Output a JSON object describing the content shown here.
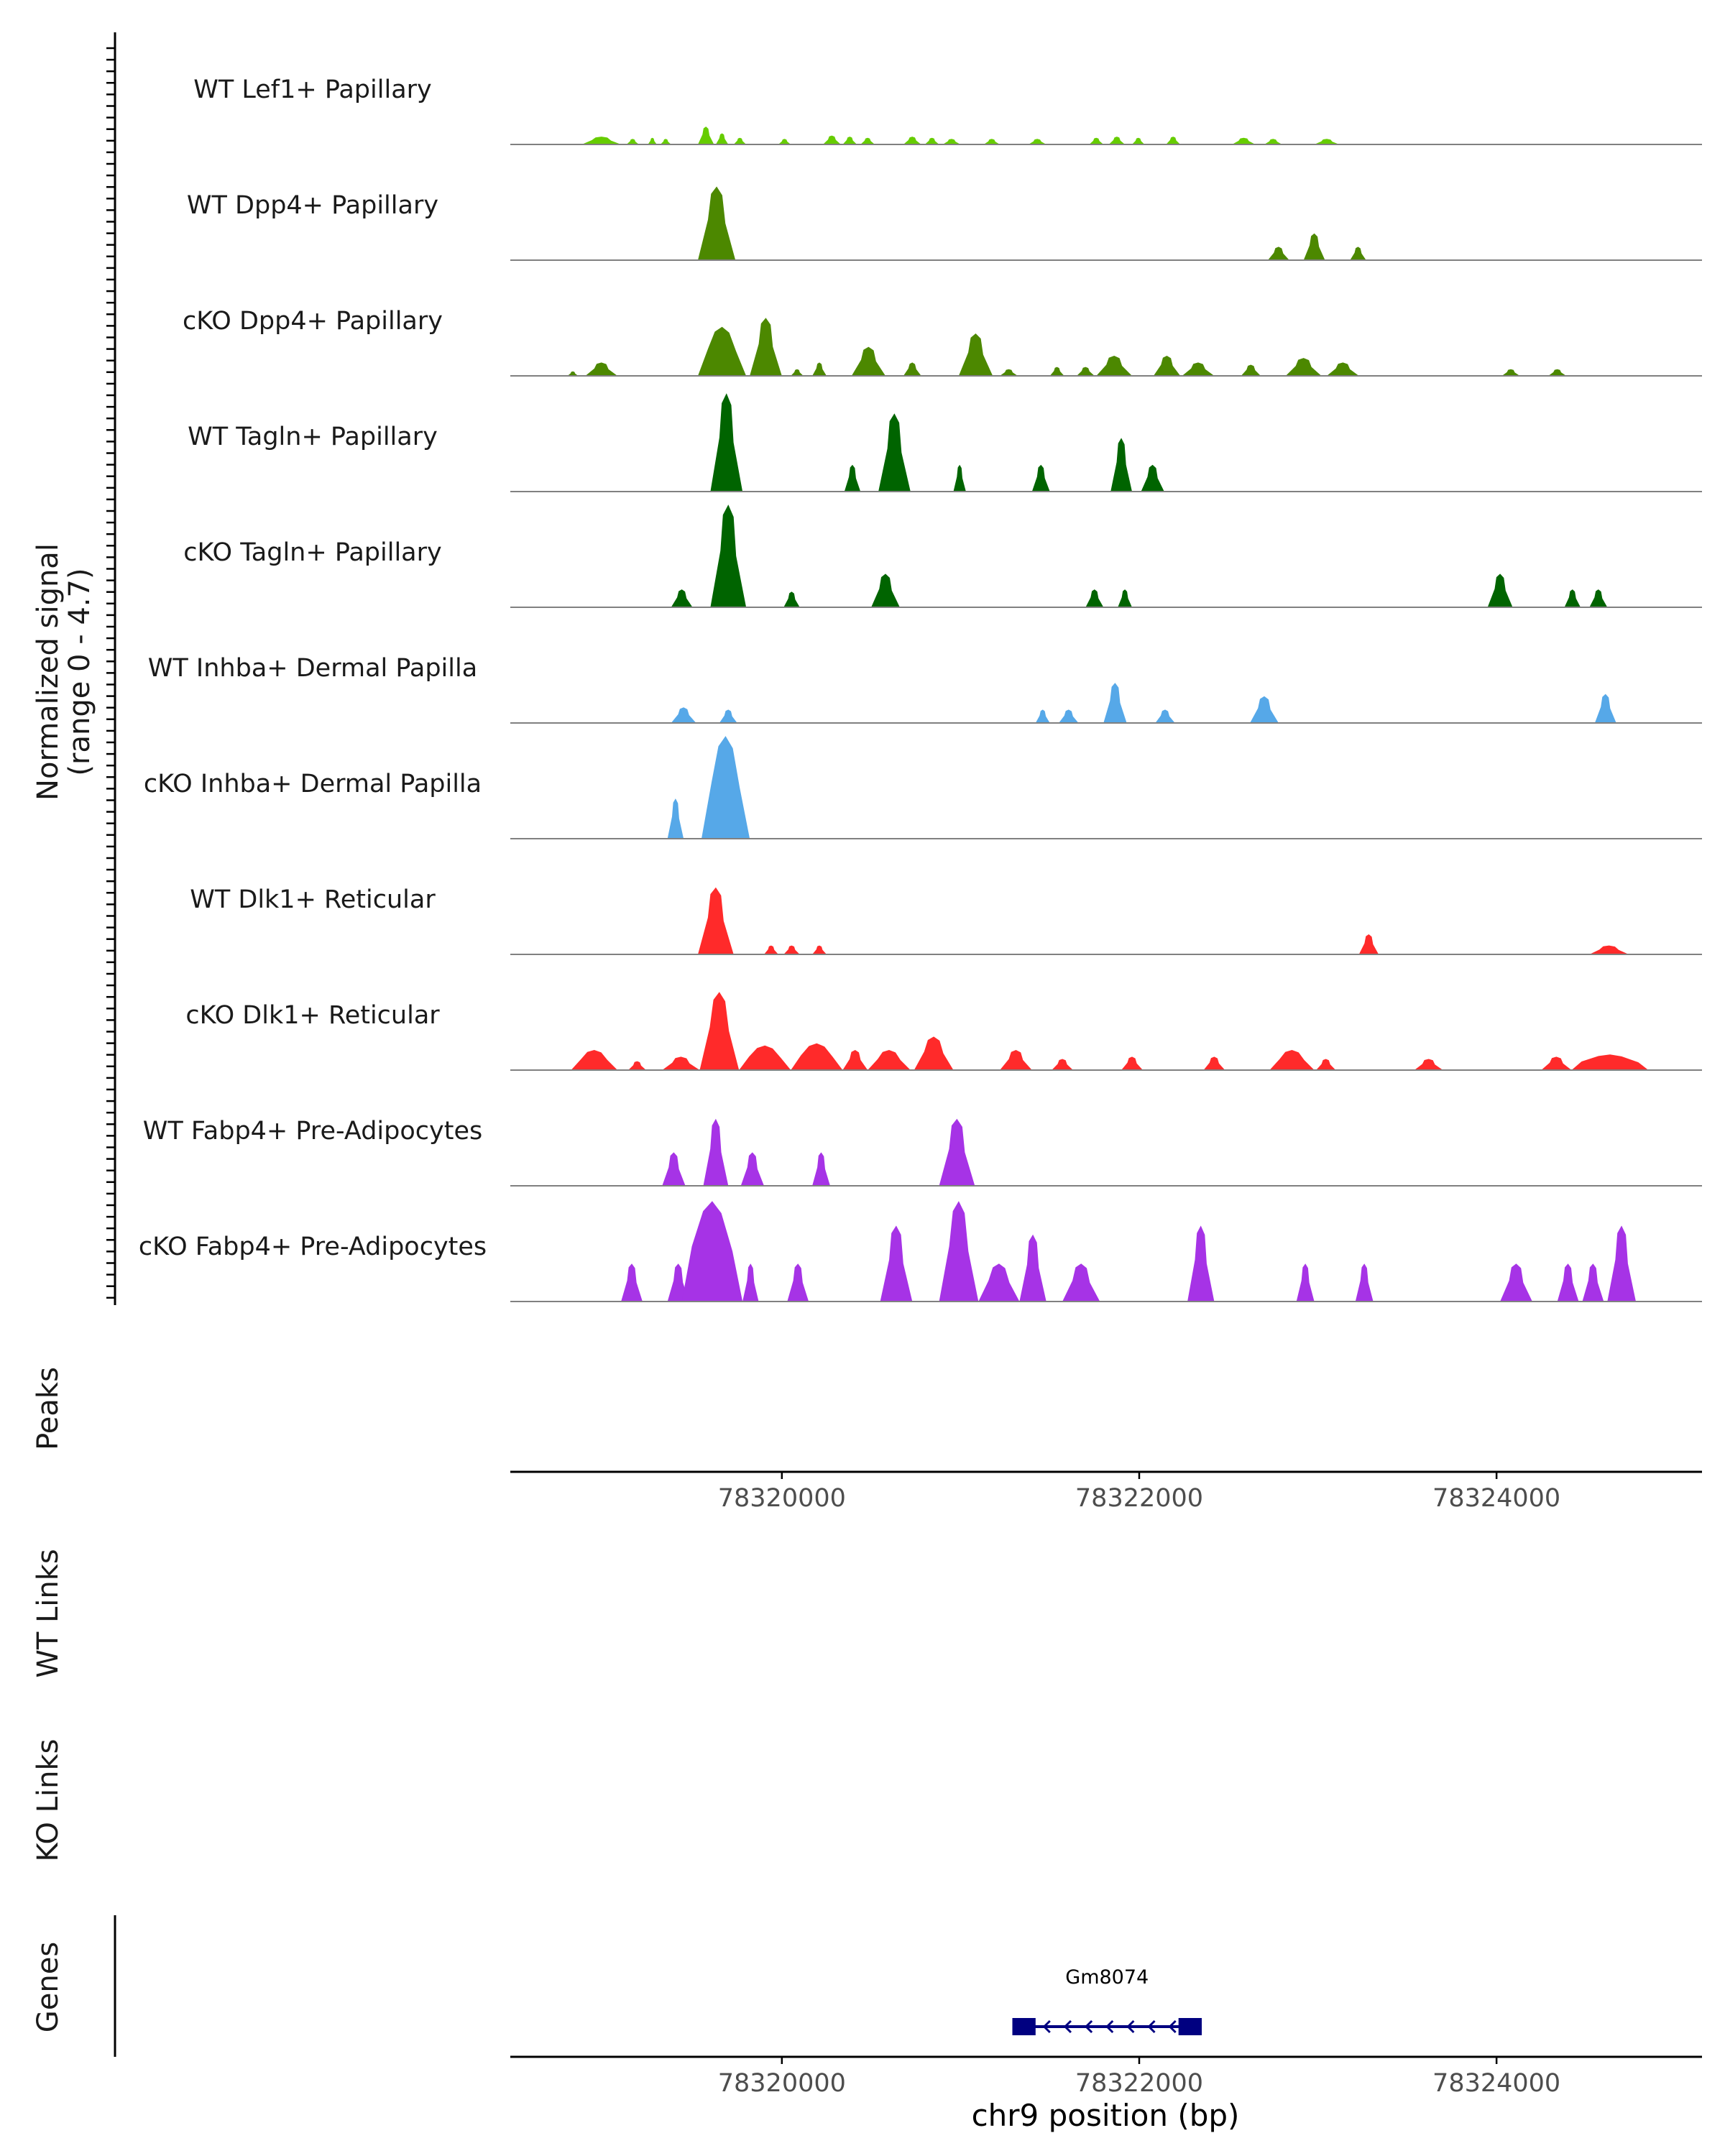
{
  "chart_data": {
    "type": "area",
    "title": "",
    "y_axis_label_line1": "Normalized signal",
    "y_axis_label_line2": "(range 0 - 4.7)",
    "ylim": [
      0,
      4.7
    ],
    "xlim": [
      78318480,
      78325150
    ],
    "xlabel": "chr9 position (bp)",
    "x_ticks": [
      78320000,
      78322000,
      78324000
    ],
    "x_tick_labels": [
      "78320000",
      "78322000",
      "78324000"
    ],
    "panel_labels": {
      "peaks": "Peaks",
      "wt_links": "WT Links",
      "ko_links": "KO Links",
      "genes": "Genes"
    },
    "tracks": [
      {
        "name": "WT Lef1+ Papillary",
        "color": "#66cc00",
        "peaks": [
          [
            78318880,
            78319100,
            0.35
          ],
          [
            78319130,
            78319200,
            0.25
          ],
          [
            78319250,
            78319300,
            0.3
          ],
          [
            78319320,
            78319380,
            0.25
          ],
          [
            78319530,
            78319620,
            0.8
          ],
          [
            78319630,
            78319700,
            0.5
          ],
          [
            78319730,
            78319800,
            0.3
          ],
          [
            78319980,
            78320050,
            0.25
          ],
          [
            78320230,
            78320330,
            0.4
          ],
          [
            78320340,
            78320420,
            0.35
          ],
          [
            78320440,
            78320520,
            0.3
          ],
          [
            78320680,
            78320780,
            0.35
          ],
          [
            78320800,
            78320880,
            0.3
          ],
          [
            78320900,
            78321000,
            0.25
          ],
          [
            78321130,
            78321220,
            0.25
          ],
          [
            78321380,
            78321480,
            0.25
          ],
          [
            78321720,
            78321800,
            0.3
          ],
          [
            78321830,
            78321920,
            0.35
          ],
          [
            78321960,
            78322030,
            0.3
          ],
          [
            78322150,
            78322230,
            0.35
          ],
          [
            78322520,
            78322650,
            0.3
          ],
          [
            78322700,
            78322800,
            0.25
          ],
          [
            78322980,
            78323120,
            0.25
          ]
        ]
      },
      {
        "name": "WT Dpp4+ Papillary",
        "color": "#4c8800",
        "peaks": [
          [
            78319530,
            78319740,
            3.3
          ],
          [
            78322720,
            78322840,
            0.6
          ],
          [
            78322920,
            78323040,
            1.2
          ],
          [
            78323180,
            78323270,
            0.6
          ]
        ]
      },
      {
        "name": "cKO Dpp4+ Papillary",
        "color": "#4c8800",
        "peaks": [
          [
            78318800,
            78318860,
            0.2
          ],
          [
            78318900,
            78319080,
            0.6
          ],
          [
            78319530,
            78319800,
            2.2
          ],
          [
            78319820,
            78320000,
            2.6
          ],
          [
            78320050,
            78320120,
            0.3
          ],
          [
            78320170,
            78320250,
            0.6
          ],
          [
            78320390,
            78320580,
            1.3
          ],
          [
            78320680,
            78320780,
            0.6
          ],
          [
            78320990,
            78321180,
            1.9
          ],
          [
            78321220,
            78321320,
            0.3
          ],
          [
            78321500,
            78321580,
            0.4
          ],
          [
            78321650,
            78321750,
            0.4
          ],
          [
            78321760,
            78321960,
            0.9
          ],
          [
            78322080,
            78322230,
            0.9
          ],
          [
            78322240,
            78322420,
            0.6
          ],
          [
            78322570,
            78322680,
            0.5
          ],
          [
            78322820,
            78323020,
            0.8
          ],
          [
            78323050,
            78323230,
            0.6
          ],
          [
            78324030,
            78324130,
            0.3
          ],
          [
            78324290,
            78324390,
            0.3
          ]
        ]
      },
      {
        "name": "WT Tagln+ Papillary",
        "color": "#006400",
        "peaks": [
          [
            78319600,
            78319780,
            4.4
          ],
          [
            78320350,
            78320440,
            1.2
          ],
          [
            78320540,
            78320720,
            3.5
          ],
          [
            78320960,
            78321030,
            1.2
          ],
          [
            78321400,
            78321500,
            1.2
          ],
          [
            78321840,
            78321960,
            2.4
          ],
          [
            78322010,
            78322140,
            1.2
          ]
        ]
      },
      {
        "name": "cKO Tagln+ Papillary",
        "color": "#006400",
        "peaks": [
          [
            78319380,
            78319500,
            0.8
          ],
          [
            78319600,
            78319800,
            4.6
          ],
          [
            78320010,
            78320100,
            0.7
          ],
          [
            78320500,
            78320660,
            1.5
          ],
          [
            78321700,
            78321800,
            0.8
          ],
          [
            78321880,
            78321960,
            0.8
          ],
          [
            78323950,
            78324090,
            1.5
          ],
          [
            78324380,
            78324470,
            0.8
          ],
          [
            78324520,
            78324620,
            0.8
          ]
        ]
      },
      {
        "name": "WT Inhba+ Dermal Papilla",
        "color": "#56a8e8",
        "peaks": [
          [
            78319380,
            78319520,
            0.7
          ],
          [
            78319650,
            78319750,
            0.6
          ],
          [
            78321420,
            78321500,
            0.6
          ],
          [
            78321550,
            78321660,
            0.6
          ],
          [
            78321800,
            78321930,
            1.8
          ],
          [
            78322090,
            78322200,
            0.6
          ],
          [
            78322620,
            78322780,
            1.2
          ],
          [
            78324550,
            78324670,
            1.3
          ]
        ]
      },
      {
        "name": "cKO Inhba+ Dermal Papilla",
        "color": "#56a8e8",
        "peaks": [
          [
            78319360,
            78319450,
            1.8
          ],
          [
            78319550,
            78319820,
            4.6
          ]
        ]
      },
      {
        "name": "WT Dlk1+ Reticular",
        "color": "#ff2a2a",
        "peaks": [
          [
            78319530,
            78319730,
            3.0
          ],
          [
            78319900,
            78319980,
            0.4
          ],
          [
            78320010,
            78320100,
            0.4
          ],
          [
            78320170,
            78320250,
            0.4
          ],
          [
            78323230,
            78323340,
            0.9
          ],
          [
            78324520,
            78324740,
            0.4
          ]
        ]
      },
      {
        "name": "cKO Dlk1+ Reticular",
        "color": "#ff2a2a",
        "peaks": [
          [
            78318820,
            78319080,
            0.9
          ],
          [
            78319140,
            78319240,
            0.4
          ],
          [
            78319330,
            78319540,
            0.6
          ],
          [
            78319540,
            78319760,
            3.5
          ],
          [
            78319760,
            78320050,
            1.1
          ],
          [
            78320050,
            78320340,
            1.2
          ],
          [
            78320340,
            78320480,
            0.9
          ],
          [
            78320480,
            78320720,
            0.9
          ],
          [
            78320740,
            78320960,
            1.5
          ],
          [
            78321220,
            78321400,
            0.9
          ],
          [
            78321510,
            78321630,
            0.5
          ],
          [
            78321900,
            78322020,
            0.6
          ],
          [
            78322360,
            78322480,
            0.6
          ],
          [
            78322730,
            78322980,
            0.9
          ],
          [
            78322990,
            78323100,
            0.5
          ],
          [
            78323540,
            78323700,
            0.5
          ],
          [
            78324250,
            78324420,
            0.6
          ],
          [
            78324420,
            78324850,
            0.7
          ]
        ]
      },
      {
        "name": "WT Fabp4+ Pre-Adipocytes",
        "color": "#a633e6",
        "peaks": [
          [
            78319330,
            78319460,
            1.5
          ],
          [
            78319560,
            78319700,
            3.0
          ],
          [
            78319770,
            78319900,
            1.5
          ],
          [
            78320170,
            78320270,
            1.5
          ],
          [
            78320880,
            78321080,
            3.0
          ]
        ]
      },
      {
        "name": "cKO Fabp4+ Pre-Adipocytes",
        "color": "#a633e6",
        "peaks": [
          [
            78319100,
            78319220,
            1.7
          ],
          [
            78319360,
            78319480,
            1.7
          ],
          [
            78319440,
            78319780,
            4.5
          ],
          [
            78319780,
            78319870,
            1.7
          ],
          [
            78320030,
            78320150,
            1.7
          ],
          [
            78320550,
            78320730,
            3.4
          ],
          [
            78320880,
            78321100,
            4.5
          ],
          [
            78321100,
            78321330,
            1.7
          ],
          [
            78321330,
            78321480,
            3.0
          ],
          [
            78321570,
            78321780,
            1.7
          ],
          [
            78322270,
            78322420,
            3.4
          ],
          [
            78322880,
            78322980,
            1.7
          ],
          [
            78323210,
            78323310,
            1.7
          ],
          [
            78324020,
            78324200,
            1.7
          ],
          [
            78324340,
            78324460,
            1.7
          ],
          [
            78324480,
            78324600,
            1.7
          ],
          [
            78324620,
            78324780,
            3.4
          ]
        ]
      }
    ],
    "genes": [
      {
        "name": "Gm8074",
        "start": 78321290,
        "end": 78322350,
        "strand": "-",
        "exons": [
          [
            78321290,
            78321420
          ],
          [
            78322220,
            78322350
          ]
        ],
        "color": "#000080"
      }
    ]
  }
}
